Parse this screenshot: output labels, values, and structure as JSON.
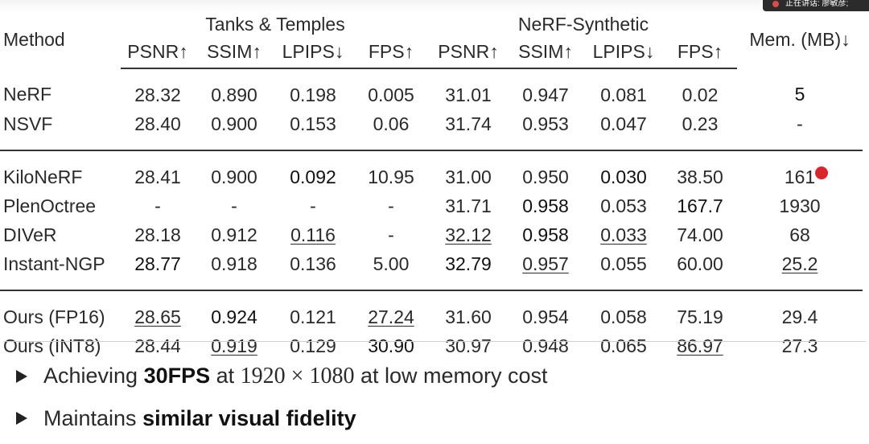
{
  "overlay": {
    "speaker_text": "正在讲话: 廖敏彦;"
  },
  "table": {
    "method_header": "Method",
    "group_left": "Tanks & Temples",
    "group_right": "NeRF-Synthetic",
    "mem_header": "Mem. (MB)↓",
    "metric_headers": [
      "PSNR↑",
      "SSIM↑",
      "LPIPS↓",
      "FPS↑",
      "PSNR↑",
      "SSIM↑",
      "LPIPS↓",
      "FPS↑"
    ],
    "rows": [
      {
        "method": "NeRF",
        "cells": [
          "28.32",
          "0.890",
          "0.198",
          "0.005",
          "31.01",
          "0.947",
          "0.081",
          "0.02",
          "5"
        ]
      },
      {
        "method": "NSVF",
        "cells": [
          "28.40",
          "0.900",
          "0.153",
          "0.06",
          "31.74",
          "0.953",
          "0.047",
          "0.23",
          "-"
        ]
      },
      {
        "method": "KiloNeRF",
        "cells": [
          "28.41",
          "0.900",
          "0.092",
          "10.95",
          "31.00",
          "0.950",
          "0.030",
          "38.50",
          "161"
        ]
      },
      {
        "method": "PlenOctree",
        "cells": [
          "-",
          "-",
          "-",
          "-",
          "31.71",
          "0.958",
          "0.053",
          "167.7",
          "1930"
        ]
      },
      {
        "method": "DIVeR",
        "cells": [
          "28.18",
          "0.912",
          "0.116",
          "-",
          "32.12",
          "0.958",
          "0.033",
          "74.00",
          "68"
        ]
      },
      {
        "method": "Instant-NGP",
        "cells": [
          "28.77",
          "0.918",
          "0.136",
          "5.00",
          "32.79",
          "0.957",
          "0.055",
          "60.00",
          "25.2"
        ]
      },
      {
        "method": "Ours (FP16)",
        "cells": [
          "28.65",
          "0.924",
          "0.121",
          "27.24",
          "31.60",
          "0.954",
          "0.058",
          "75.19",
          "29.4"
        ]
      },
      {
        "method": "Ours (INT8)",
        "cells": [
          "28.44",
          "0.919",
          "0.129",
          "30.90",
          "30.97",
          "0.948",
          "0.065",
          "86.97",
          "27.3"
        ]
      }
    ]
  },
  "bullets": {
    "b1_pre": "Achieving ",
    "b1_bold": "30FPS",
    "b1_mid": " at ",
    "b1_math": "1920 × 1080",
    "b1_post": " at low memory cost",
    "b2_pre": "Maintains ",
    "b2_bold": "similar visual fidelity"
  }
}
